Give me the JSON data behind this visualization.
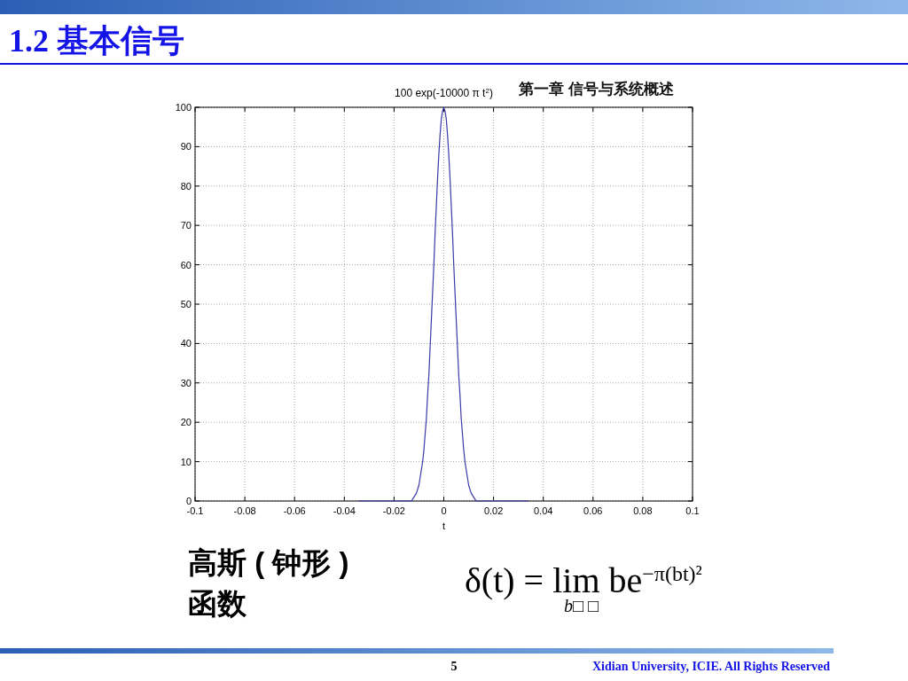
{
  "chart_data": {
    "type": "line",
    "title": "100 exp(-10000 π t$^{2}$)",
    "xlabel": "t",
    "annotations": [
      "1.2 基本信号",
      "第一章 信号与系统概述",
      "高斯 ( 钟形 ) 函数",
      "δ(t) = lim be$^{−π(bt)²}$",
      "b□ □",
      "5",
      "Xidian University, ICIE. All Rights Reserved"
    ],
    "x": [
      -0.034,
      -0.02,
      -0.013,
      -0.012,
      -0.011,
      -0.01,
      -0.009,
      -0.0085,
      -0.008,
      -0.0075,
      -0.007,
      -0.0065,
      -0.006,
      -0.0055,
      -0.005,
      -0.0045,
      -0.004,
      -0.0035,
      -0.003,
      -0.0025,
      -0.002,
      -0.0015,
      -0.001,
      -0.0005,
      0,
      0.0005,
      0.001,
      0.0015,
      0.002,
      0.0025,
      0.003,
      0.0035,
      0.004,
      0.0045,
      0.005,
      0.0055,
      0.006,
      0.0065,
      0.007,
      0.0075,
      0.008,
      0.0085,
      0.009,
      0.01,
      0.011,
      0.012,
      0.013,
      0.02,
      0.034
    ],
    "series": [
      {
        "color": "#3a3aa8",
        "values": [
          0,
          0,
          0,
          1,
          2,
          4,
          8,
          10,
          13,
          17,
          21,
          27,
          32,
          39,
          46,
          53,
          60,
          68,
          75,
          82,
          88,
          93,
          97,
          99,
          100,
          99,
          97,
          93,
          88,
          82,
          75,
          68,
          60,
          53,
          46,
          39,
          32,
          27,
          21,
          17,
          13,
          10,
          8,
          4,
          2,
          1,
          0,
          0,
          0
        ]
      }
    ],
    "xlim": [
      -0.1,
      0.1
    ],
    "ylim": [
      0,
      100
    ],
    "xticks": [
      -0.1,
      -0.08,
      -0.06,
      -0.04,
      -0.02,
      0,
      0.02,
      0.04,
      0.06,
      0.08,
      0.1
    ],
    "yticks": [
      0,
      10,
      20,
      30,
      40,
      50,
      60,
      70,
      80,
      90,
      100
    ],
    "grid": true,
    "line_style": "solid"
  }
}
